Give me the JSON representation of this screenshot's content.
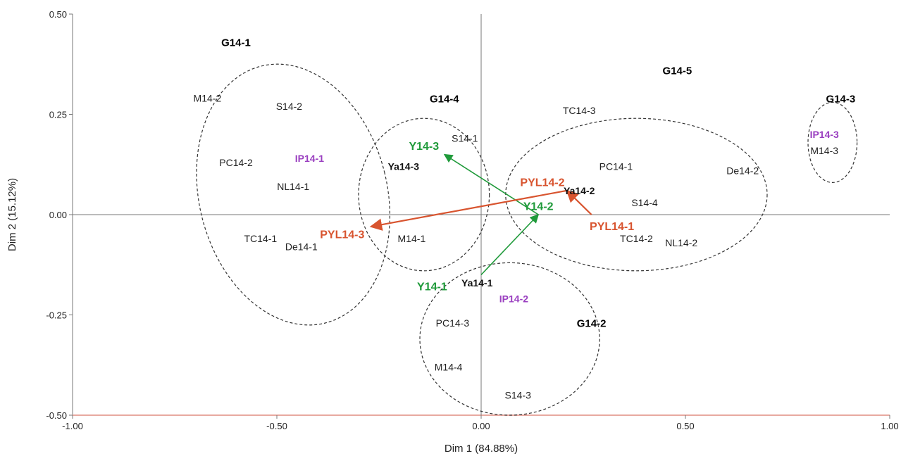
{
  "chart_data": {
    "type": "scatter",
    "xlabel": "Dim 1 (84.88%)",
    "ylabel": "Dim 2 (15.12%)",
    "xlim": [
      -1.0,
      1.0
    ],
    "ylim": [
      -0.5,
      0.5
    ],
    "xticks": [
      -1.0,
      -0.5,
      0.0,
      0.5,
      1.0
    ],
    "yticks": [
      -0.5,
      -0.25,
      0.0,
      0.25,
      0.5
    ],
    "xtick_labels": [
      "-1.00",
      "-0.50",
      "0.00",
      "0.50",
      "1.00"
    ],
    "ytick_labels": [
      "-0.50",
      "-0.25",
      "0.00",
      "0.25",
      "0.50"
    ],
    "grid": false,
    "zero_lines": true,
    "colors": {
      "sample": "#222222",
      "group": "#000000",
      "ya": "#111111",
      "ip": "#9a3fc0",
      "y_series": "#1f9a3a",
      "pyl_series": "#d8542f",
      "ellipse": "#333333",
      "axis": "#777777",
      "frame_bottom": "#e8a9a0"
    },
    "points": [
      {
        "label": "M14-2",
        "x": -0.67,
        "y": 0.29,
        "kind": "sample"
      },
      {
        "label": "S14-2",
        "x": -0.47,
        "y": 0.27,
        "kind": "sample"
      },
      {
        "label": "PC14-2",
        "x": -0.6,
        "y": 0.13,
        "kind": "sample"
      },
      {
        "label": "IP14-1",
        "x": -0.42,
        "y": 0.14,
        "kind": "ip"
      },
      {
        "label": "NL14-1",
        "x": -0.46,
        "y": 0.07,
        "kind": "sample"
      },
      {
        "label": "TC14-1",
        "x": -0.54,
        "y": -0.06,
        "kind": "sample"
      },
      {
        "label": "De14-1",
        "x": -0.44,
        "y": -0.08,
        "kind": "sample"
      },
      {
        "label": "S14-1",
        "x": -0.04,
        "y": 0.19,
        "kind": "sample"
      },
      {
        "label": "Ya14-3",
        "x": -0.19,
        "y": 0.12,
        "kind": "ya"
      },
      {
        "label": "M14-1",
        "x": -0.17,
        "y": -0.06,
        "kind": "sample"
      },
      {
        "label": "TC14-3",
        "x": 0.24,
        "y": 0.26,
        "kind": "sample"
      },
      {
        "label": "PC14-1",
        "x": 0.33,
        "y": 0.12,
        "kind": "sample"
      },
      {
        "label": "De14-2",
        "x": 0.64,
        "y": 0.11,
        "kind": "sample"
      },
      {
        "label": "Ya14-2",
        "x": 0.24,
        "y": 0.06,
        "kind": "ya"
      },
      {
        "label": "S14-4",
        "x": 0.4,
        "y": 0.03,
        "kind": "sample"
      },
      {
        "label": "TC14-2",
        "x": 0.38,
        "y": -0.06,
        "kind": "sample"
      },
      {
        "label": "NL14-2",
        "x": 0.49,
        "y": -0.07,
        "kind": "sample"
      },
      {
        "label": "IP14-3",
        "x": 0.84,
        "y": 0.2,
        "kind": "ip"
      },
      {
        "label": "M14-3",
        "x": 0.84,
        "y": 0.16,
        "kind": "sample"
      },
      {
        "label": "Ya14-1",
        "x": -0.01,
        "y": -0.17,
        "kind": "ya"
      },
      {
        "label": "IP14-2",
        "x": 0.08,
        "y": -0.21,
        "kind": "ip"
      },
      {
        "label": "PC14-3",
        "x": -0.07,
        "y": -0.27,
        "kind": "sample"
      },
      {
        "label": "M14-4",
        "x": -0.08,
        "y": -0.38,
        "kind": "sample"
      },
      {
        "label": "S14-3",
        "x": 0.09,
        "y": -0.45,
        "kind": "sample"
      }
    ],
    "groups": [
      {
        "label": "G14-1",
        "cx": -0.46,
        "cy": 0.05,
        "rx": 0.23,
        "ry": 0.33,
        "angle": -14,
        "label_x": -0.6,
        "label_y": 0.42
      },
      {
        "label": "G14-4",
        "cx": -0.14,
        "cy": 0.05,
        "rx": 0.16,
        "ry": 0.19,
        "angle": 0,
        "label_x": -0.09,
        "label_y": 0.28
      },
      {
        "label": "G14-5",
        "cx": 0.38,
        "cy": 0.05,
        "rx": 0.32,
        "ry": 0.19,
        "angle": 0,
        "label_x": 0.48,
        "label_y": 0.35
      },
      {
        "label": "G14-3",
        "cx": 0.86,
        "cy": 0.18,
        "rx": 0.06,
        "ry": 0.1,
        "angle": 0,
        "label_x": 0.88,
        "label_y": 0.28
      },
      {
        "label": "G14-2",
        "cx": 0.07,
        "cy": -0.31,
        "rx": 0.22,
        "ry": 0.19,
        "angle": 0,
        "label_x": 0.27,
        "label_y": -0.28
      }
    ],
    "arrows": [
      {
        "label": "Y14-1",
        "series": "y",
        "x1": 0.0,
        "y1": -0.15,
        "x2": 0.14,
        "y2": 0.0,
        "label_x": -0.12,
        "label_y": -0.18
      },
      {
        "label": "Y14-2",
        "series": "y",
        "x1": 0.14,
        "y1": 0.0,
        "x2": -0.09,
        "y2": 0.15,
        "label_x": 0.14,
        "label_y": 0.02
      },
      {
        "label": "Y14-3",
        "series": "y",
        "x1": 0.14,
        "y1": 0.0,
        "x2": -0.09,
        "y2": 0.15,
        "label_x": -0.14,
        "label_y": 0.17
      },
      {
        "label": "PYL14-1",
        "series": "pyl",
        "x1": 0.27,
        "y1": 0.0,
        "x2": 0.21,
        "y2": 0.06,
        "label_x": 0.32,
        "label_y": -0.03
      },
      {
        "label": "PYL14-2",
        "series": "pyl",
        "x1": 0.21,
        "y1": 0.06,
        "x2": -0.27,
        "y2": -0.03,
        "label_x": 0.15,
        "label_y": 0.08
      },
      {
        "label": "PYL14-3",
        "series": "pyl",
        "x1": 0.21,
        "y1": 0.06,
        "x2": -0.27,
        "y2": -0.03,
        "label_x": -0.34,
        "label_y": -0.05
      }
    ]
  }
}
